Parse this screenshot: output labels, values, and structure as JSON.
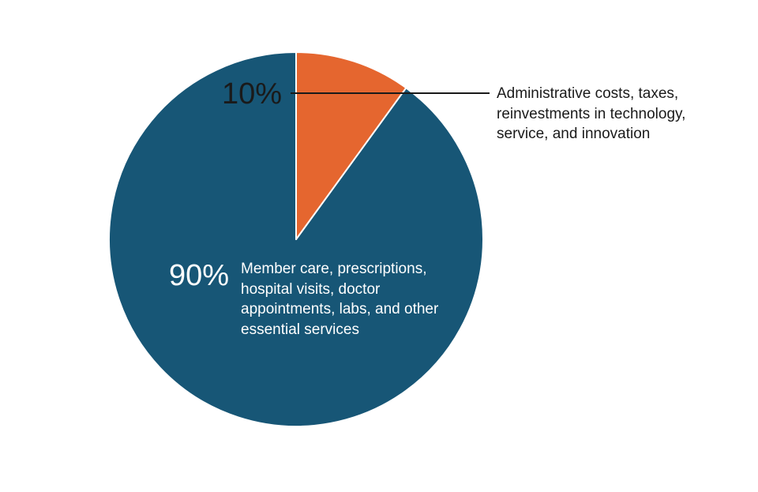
{
  "chart_data": {
    "type": "pie",
    "slices": [
      {
        "value": 90,
        "label": "90%",
        "description_lines": [
          "Member care, prescriptions,",
          "hospital visits, doctor",
          "appointments, labs, and other",
          "essential services"
        ],
        "color": "#175676"
      },
      {
        "value": 10,
        "label": "10%",
        "description_lines": [
          "Administrative costs, taxes,",
          "reinvestments in technology,",
          "service, and innovation"
        ],
        "color": "#E5662F"
      }
    ],
    "start": "12 o'clock",
    "direction": "counter-clockwise",
    "slice_border_color": "#ffffff",
    "leader_line_color": "#1a1a1a",
    "inside_text_color": "#ffffff",
    "label_text_color": "#1a1a1a"
  }
}
